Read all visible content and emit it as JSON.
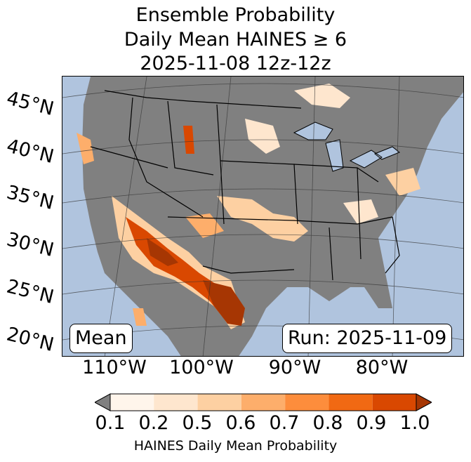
{
  "title": {
    "line1": "Ensemble Probability",
    "line2": "Daily Mean HAINES ≥ 6",
    "line3": "2025-11-08 12z-12z"
  },
  "map": {
    "lat_labels": [
      "45°N",
      "40°N",
      "35°N",
      "30°N",
      "25°N",
      "20°N"
    ],
    "lon_labels": [
      "110°W",
      "100°W",
      "90°W",
      "80°W"
    ],
    "mean_label": "Mean",
    "run_label": "Run: 2025-11-09",
    "ocean_color": "#b0c4de",
    "land_color": "#808080"
  },
  "colorbar": {
    "ticks": [
      "0.1",
      "0.2",
      "0.5",
      "0.6",
      "0.7",
      "0.8",
      "0.9",
      "1.0"
    ],
    "colors": [
      "#fff5eb",
      "#fee6ce",
      "#fdd0a2",
      "#fdae6b",
      "#fd8d3c",
      "#f16913",
      "#d94801",
      "#a63603"
    ],
    "under_color": "#808080",
    "label": "HAINES Daily Mean Probability"
  }
}
